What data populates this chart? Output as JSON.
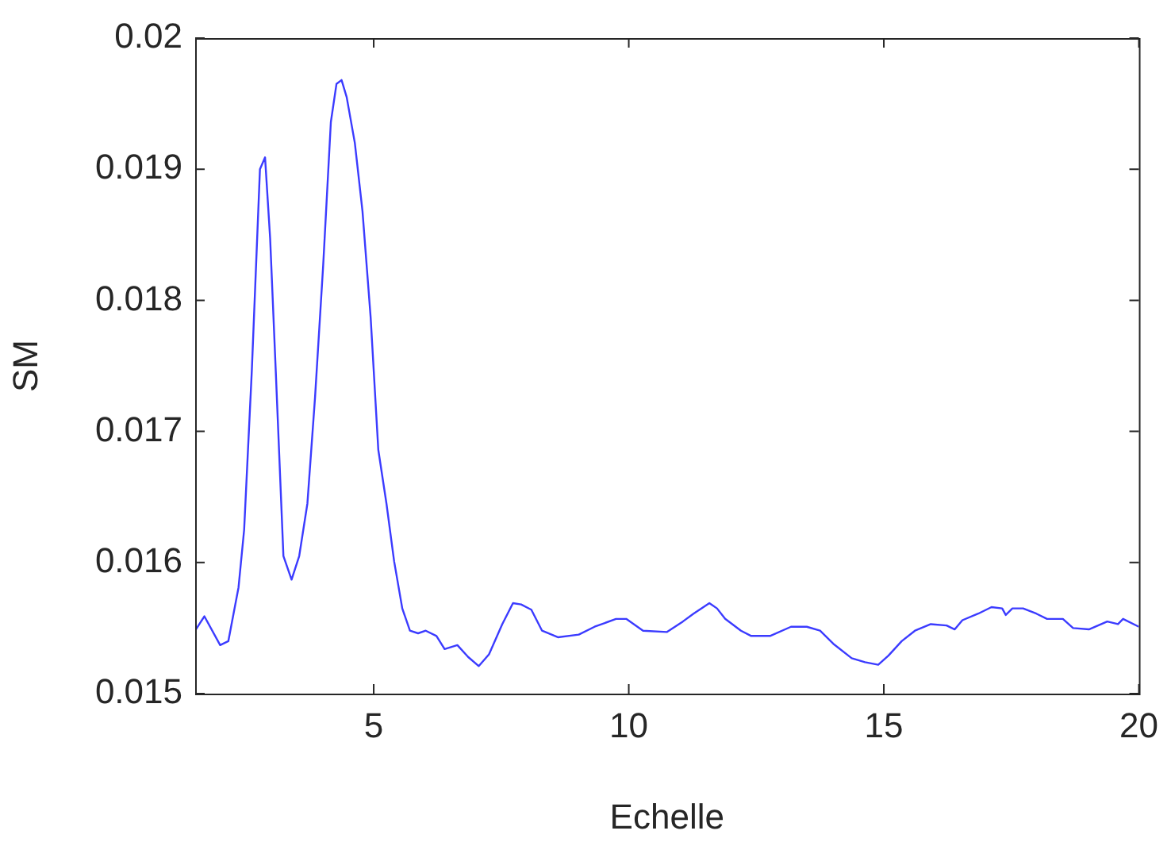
{
  "chart_data": {
    "type": "line",
    "xlabel": "Echelle",
    "ylabel": "SM",
    "xlim": [
      1.5,
      20
    ],
    "xticks": [
      5,
      10,
      15,
      20
    ],
    "ylim": [
      0.015,
      0.02
    ],
    "yticks": [
      0.015,
      0.016,
      0.017,
      0.018,
      0.019,
      0.02
    ],
    "grid": false,
    "legend": false,
    "marker": "none",
    "line_style": "solid",
    "series": [
      {
        "color": "#3b3bff",
        "x": [
          1.5,
          1.68,
          1.99,
          2.15,
          2.35,
          2.46,
          2.61,
          2.77,
          2.87,
          2.97,
          3.08,
          3.23,
          3.39,
          3.54,
          3.7,
          3.85,
          4.01,
          4.16,
          4.27,
          4.37,
          4.47,
          4.63,
          4.78,
          4.94,
          5.09,
          5.25,
          5.4,
          5.56,
          5.71,
          5.87,
          6.02,
          6.23,
          6.39,
          6.64,
          6.85,
          7.06,
          7.26,
          7.52,
          7.73,
          7.89,
          8.09,
          8.3,
          8.61,
          9.02,
          9.33,
          9.75,
          9.95,
          10.28,
          10.75,
          11.06,
          11.27,
          11.58,
          11.73,
          11.89,
          12.2,
          12.4,
          12.77,
          13.18,
          13.49,
          13.75,
          14.01,
          14.37,
          14.63,
          14.89,
          15.09,
          15.35,
          15.61,
          15.92,
          16.23,
          16.39,
          16.54,
          16.85,
          17.11,
          17.32,
          17.39,
          17.52,
          17.73,
          17.99,
          18.2,
          18.51,
          18.71,
          19.02,
          19.38,
          19.59,
          19.69,
          20
        ],
        "values": [
          0.01548,
          0.01559,
          0.01537,
          0.0154,
          0.01581,
          0.01625,
          0.01746,
          0.019,
          0.01909,
          0.01847,
          0.01746,
          0.01605,
          0.01587,
          0.01605,
          0.01645,
          0.01726,
          0.01827,
          0.01936,
          0.01965,
          0.01968,
          0.01955,
          0.0192,
          0.01868,
          0.01787,
          0.01686,
          0.01645,
          0.01601,
          0.01565,
          0.01548,
          0.01546,
          0.01548,
          0.01544,
          0.01534,
          0.01537,
          0.01528,
          0.01521,
          0.0153,
          0.01553,
          0.01569,
          0.01568,
          0.01564,
          0.01548,
          0.01543,
          0.01545,
          0.01551,
          0.01557,
          0.01557,
          0.01548,
          0.01547,
          0.01555,
          0.01561,
          0.01569,
          0.01565,
          0.01557,
          0.01548,
          0.01544,
          0.01544,
          0.01551,
          0.01551,
          0.01548,
          0.01538,
          0.01527,
          0.01524,
          0.01522,
          0.01529,
          0.0154,
          0.01548,
          0.01553,
          0.01552,
          0.01549,
          0.01556,
          0.01561,
          0.01566,
          0.01565,
          0.0156,
          0.01565,
          0.01565,
          0.01561,
          0.01557,
          0.01557,
          0.0155,
          0.01549,
          0.01555,
          0.01553,
          0.01557,
          0.01551
        ]
      }
    ]
  }
}
